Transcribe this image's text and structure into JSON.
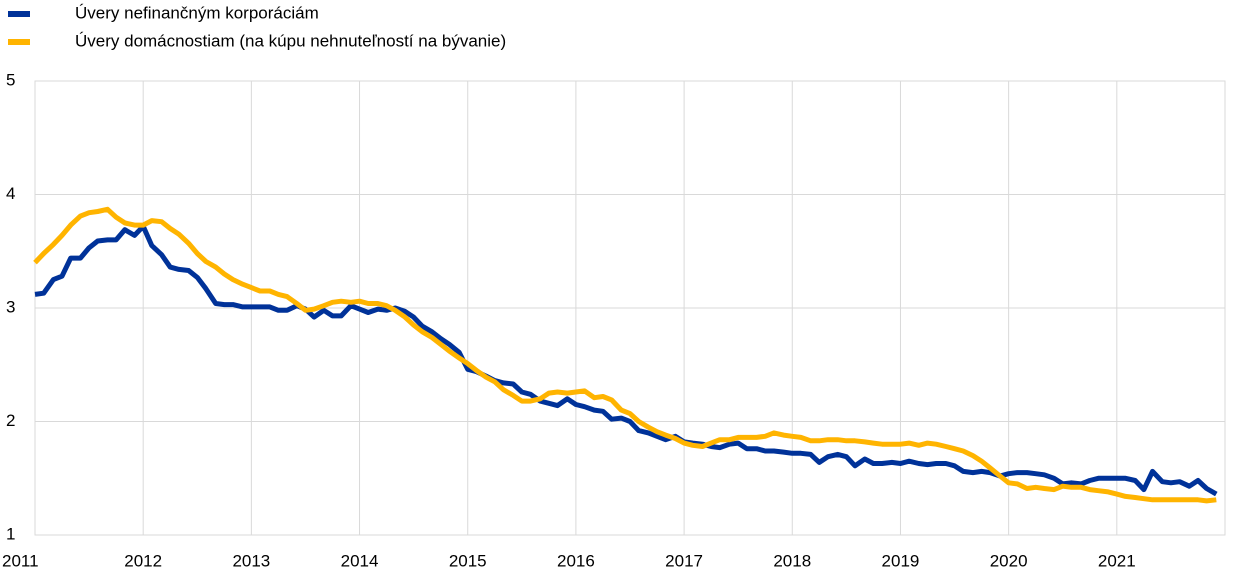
{
  "chart_data": {
    "type": "line",
    "x": [
      2011.0,
      2011.08,
      2011.17,
      2011.25,
      2011.33,
      2011.42,
      2011.5,
      2011.58,
      2011.67,
      2011.75,
      2011.83,
      2011.92,
      2012.0,
      2012.08,
      2012.17,
      2012.25,
      2012.33,
      2012.42,
      2012.5,
      2012.58,
      2012.67,
      2012.75,
      2012.83,
      2012.92,
      2013.0,
      2013.08,
      2013.17,
      2013.25,
      2013.33,
      2013.42,
      2013.5,
      2013.58,
      2013.67,
      2013.75,
      2013.83,
      2013.92,
      2014.0,
      2014.08,
      2014.17,
      2014.25,
      2014.33,
      2014.42,
      2014.5,
      2014.58,
      2014.67,
      2014.75,
      2014.83,
      2014.92,
      2015.0,
      2015.08,
      2015.17,
      2015.25,
      2015.33,
      2015.42,
      2015.5,
      2015.58,
      2015.67,
      2015.75,
      2015.83,
      2015.92,
      2016.0,
      2016.08,
      2016.17,
      2016.25,
      2016.33,
      2016.42,
      2016.5,
      2016.58,
      2016.67,
      2016.75,
      2016.83,
      2016.92,
      2017.0,
      2017.08,
      2017.17,
      2017.25,
      2017.33,
      2017.42,
      2017.5,
      2017.58,
      2017.67,
      2017.75,
      2017.83,
      2017.92,
      2018.0,
      2018.08,
      2018.17,
      2018.25,
      2018.33,
      2018.42,
      2018.5,
      2018.58,
      2018.67,
      2018.75,
      2018.83,
      2018.92,
      2019.0,
      2019.08,
      2019.17,
      2019.25,
      2019.33,
      2019.42,
      2019.5,
      2019.58,
      2019.67,
      2019.75,
      2019.83,
      2019.92,
      2020.0,
      2020.08,
      2020.17,
      2020.25,
      2020.33,
      2020.42,
      2020.5,
      2020.58,
      2020.67,
      2020.75,
      2020.83,
      2020.92,
      2021.0,
      2021.08,
      2021.17,
      2021.25,
      2021.33,
      2021.42,
      2021.5,
      2021.58,
      2021.67,
      2021.75,
      2021.83,
      2021.92
    ],
    "series": [
      {
        "name": "Úvery nefinančným korporáciám",
        "color": "#003299",
        "values": [
          3.12,
          3.13,
          3.25,
          3.28,
          3.44,
          3.44,
          3.53,
          3.59,
          3.6,
          3.6,
          3.69,
          3.64,
          3.72,
          3.55,
          3.47,
          3.36,
          3.34,
          3.33,
          3.27,
          3.17,
          3.04,
          3.03,
          3.03,
          3.01,
          3.01,
          3.01,
          3.01,
          2.98,
          2.98,
          3.02,
          2.99,
          2.92,
          2.98,
          2.93,
          2.93,
          3.02,
          2.99,
          2.96,
          2.99,
          2.98,
          3.0,
          2.97,
          2.92,
          2.84,
          2.79,
          2.73,
          2.68,
          2.61,
          2.46,
          2.44,
          2.4,
          2.36,
          2.34,
          2.33,
          2.26,
          2.24,
          2.18,
          2.16,
          2.14,
          2.2,
          2.15,
          2.13,
          2.1,
          2.09,
          2.02,
          2.03,
          2.0,
          1.92,
          1.9,
          1.87,
          1.84,
          1.87,
          1.82,
          1.81,
          1.8,
          1.78,
          1.77,
          1.8,
          1.81,
          1.76,
          1.76,
          1.74,
          1.74,
          1.73,
          1.72,
          1.72,
          1.71,
          1.64,
          1.69,
          1.71,
          1.69,
          1.61,
          1.67,
          1.63,
          1.63,
          1.64,
          1.63,
          1.65,
          1.63,
          1.62,
          1.63,
          1.63,
          1.61,
          1.56,
          1.55,
          1.56,
          1.55,
          1.52,
          1.54,
          1.55,
          1.55,
          1.54,
          1.53,
          1.5,
          1.45,
          1.46,
          1.45,
          1.48,
          1.5,
          1.5,
          1.5,
          1.5,
          1.48,
          1.4,
          1.56,
          1.47,
          1.46,
          1.47,
          1.43,
          1.48,
          1.41,
          1.36
        ]
      },
      {
        "name": "Úvery domácnostiam (na kúpu nehnuteľností na bývanie)",
        "color": "#ffb400",
        "values": [
          3.4,
          3.48,
          3.56,
          3.64,
          3.73,
          3.81,
          3.84,
          3.85,
          3.87,
          3.8,
          3.75,
          3.73,
          3.73,
          3.77,
          3.76,
          3.7,
          3.65,
          3.57,
          3.48,
          3.41,
          3.36,
          3.3,
          3.25,
          3.21,
          3.18,
          3.15,
          3.15,
          3.12,
          3.1,
          3.04,
          2.98,
          2.99,
          3.02,
          3.05,
          3.06,
          3.05,
          3.06,
          3.04,
          3.04,
          3.02,
          2.98,
          2.92,
          2.85,
          2.79,
          2.74,
          2.68,
          2.62,
          2.56,
          2.51,
          2.45,
          2.39,
          2.35,
          2.28,
          2.23,
          2.18,
          2.18,
          2.2,
          2.25,
          2.26,
          2.25,
          2.26,
          2.27,
          2.21,
          2.22,
          2.19,
          2.1,
          2.07,
          2.0,
          1.95,
          1.91,
          1.88,
          1.85,
          1.81,
          1.79,
          1.78,
          1.81,
          1.84,
          1.84,
          1.86,
          1.86,
          1.86,
          1.87,
          1.9,
          1.88,
          1.87,
          1.86,
          1.83,
          1.83,
          1.84,
          1.84,
          1.83,
          1.83,
          1.82,
          1.81,
          1.8,
          1.8,
          1.8,
          1.81,
          1.79,
          1.81,
          1.8,
          1.78,
          1.76,
          1.74,
          1.7,
          1.65,
          1.59,
          1.52,
          1.46,
          1.45,
          1.41,
          1.42,
          1.41,
          1.4,
          1.43,
          1.42,
          1.42,
          1.4,
          1.39,
          1.38,
          1.36,
          1.34,
          1.33,
          1.32,
          1.31,
          1.31,
          1.31,
          1.31,
          1.31,
          1.31,
          1.3,
          1.31
        ]
      }
    ],
    "xlim": [
      2011,
      2022
    ],
    "xticks": [
      2011,
      2012,
      2013,
      2014,
      2015,
      2016,
      2017,
      2018,
      2019,
      2020,
      2021
    ],
    "ylim": [
      1,
      5
    ],
    "yticks": [
      1,
      2,
      3,
      4,
      5
    ],
    "grid": true
  }
}
